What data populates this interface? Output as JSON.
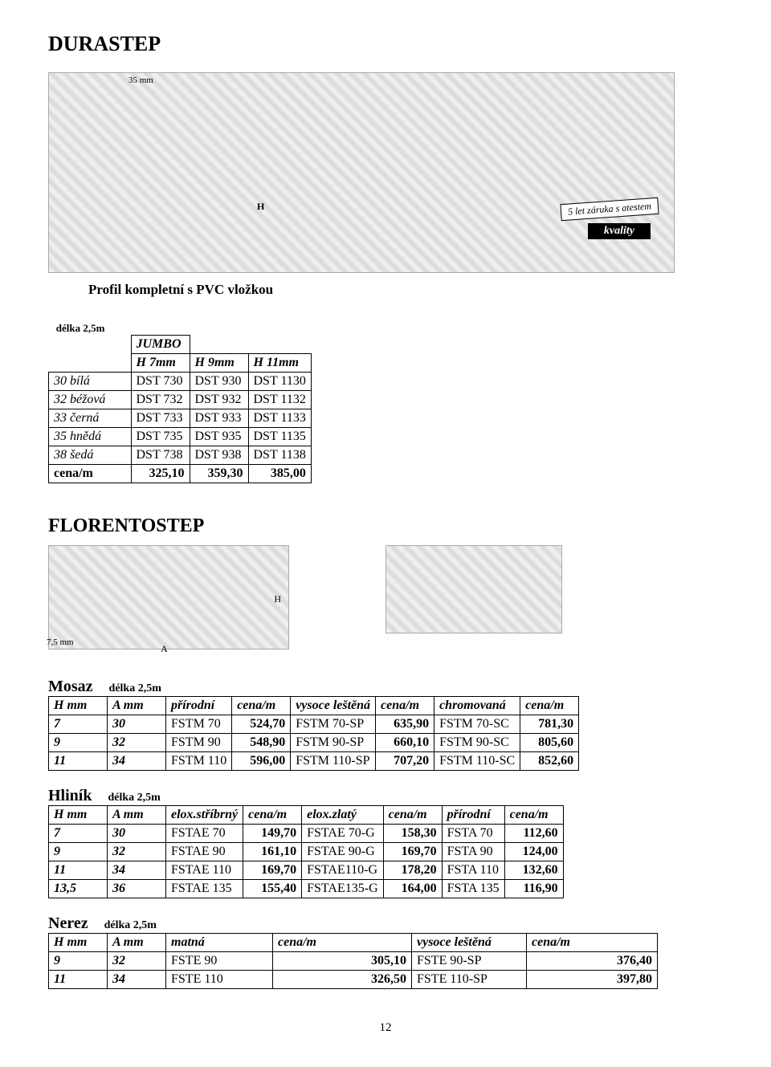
{
  "title_durastep": "DURASTEP",
  "title_florentostep": "FLORENTOSTEP",
  "label_delka25": "délka 2,5m",
  "jumbo": {
    "header": [
      "",
      "JUMBO",
      "",
      ""
    ],
    "sub": [
      "",
      "H 7mm",
      "H 9mm",
      "H 11mm"
    ],
    "rows": [
      [
        "30 bílá",
        "DST 730",
        "DST 930",
        "DST 1130"
      ],
      [
        "32 béžová",
        "DST 732",
        "DST 932",
        "DST 1132"
      ],
      [
        "33 černá",
        "DST 733",
        "DST 933",
        "DST 1133"
      ],
      [
        "35 hnědá",
        "DST 735",
        "DST 935",
        "DST 1135"
      ],
      [
        "38 šedá",
        "DST 738",
        "DST 938",
        "DST 1138"
      ],
      [
        "cena/m",
        "325,10",
        "359,30",
        "385,00"
      ]
    ]
  },
  "mosaz": {
    "name": "Mosaz",
    "header": [
      "H mm",
      "A mm",
      "přírodní",
      "cena/m",
      "vysoce leštěná",
      "cena/m",
      "chromovaná",
      "cena/m"
    ],
    "rows": [
      [
        "7",
        "30",
        "FSTM 70",
        "524,70",
        "FSTM 70-SP",
        "635,90",
        "FSTM 70-SC",
        "781,30"
      ],
      [
        "9",
        "32",
        "FSTM 90",
        "548,90",
        "FSTM 90-SP",
        "660,10",
        "FSTM 90-SC",
        "805,60"
      ],
      [
        "11",
        "34",
        "FSTM 110",
        "596,00",
        "FSTM 110-SP",
        "707,20",
        "FSTM 110-SC",
        "852,60"
      ]
    ]
  },
  "hlinik": {
    "name": "Hliník",
    "header": [
      "H mm",
      "A mm",
      "elox.stříbrný",
      "cena/m",
      "elox.zlatý",
      "cena/m",
      "přírodní",
      "cena/m"
    ],
    "rows": [
      [
        "7",
        "30",
        "FSTAE 70",
        "149,70",
        "FSTAE 70-G",
        "158,30",
        "FSTA 70",
        "112,60"
      ],
      [
        "9",
        "32",
        "FSTAE 90",
        "161,10",
        "FSTAE 90-G",
        "169,70",
        "FSTA 90",
        "124,00"
      ],
      [
        "11",
        "34",
        "FSTAE 110",
        "169,70",
        "FSTAE110-G",
        "178,20",
        "FSTA 110",
        "132,60"
      ],
      [
        "13,5",
        "36",
        "FSTAE 135",
        "155,40",
        "FSTAE135-G",
        "164,00",
        "FSTA 135",
        "116,90"
      ]
    ]
  },
  "nerez": {
    "name": "Nerez",
    "header": [
      "H mm",
      "A mm",
      "matná",
      "cena/m",
      "vysoce leštěná",
      "cena/m"
    ],
    "rows": [
      [
        "9",
        "32",
        "FSTE 90",
        "305,10",
        "FSTE 90-SP",
        "376,40"
      ],
      [
        "11",
        "34",
        "FSTE 110",
        "326,50",
        "FSTE 110-SP",
        "397,80"
      ]
    ]
  },
  "footer_page": "12",
  "image_captions": {
    "profil_kompletni": "Profil kompletní s PVC vložkou",
    "zaruka": "5 let záruka s atestem",
    "kvality": "kvality"
  },
  "diagram_labels": {
    "thirtyfive": "35 mm",
    "h": "H",
    "sevenfive": "7,5 mm",
    "a": "A"
  }
}
